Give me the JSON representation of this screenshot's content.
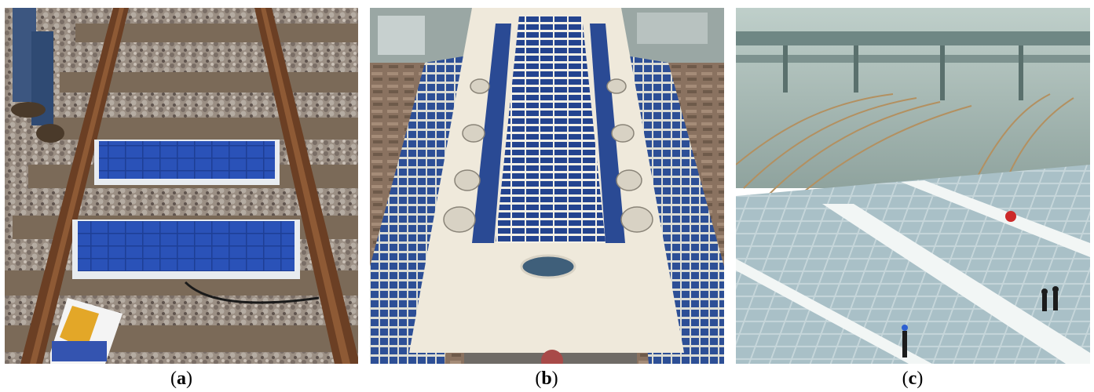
{
  "figure": {
    "panels": [
      {
        "id": "a",
        "subject": "solar-panels-on-railway-track"
      },
      {
        "id": "b",
        "subject": "station-roof-solar-array-aerial"
      },
      {
        "id": "c",
        "subject": "rooftop-solar-over-rail-yard"
      }
    ],
    "captions": {
      "a_open": "(",
      "a_letter": "a",
      "a_close": ")",
      "b_open": "(",
      "b_letter": "b",
      "b_close": ")",
      "c_open": "(",
      "c_letter": "c",
      "c_close": ")"
    }
  }
}
